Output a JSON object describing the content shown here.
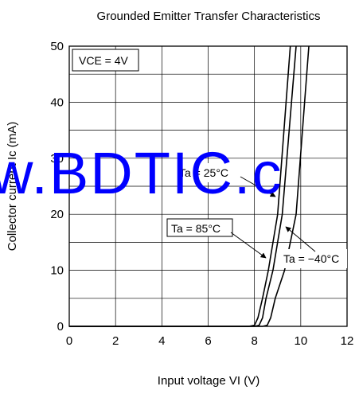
{
  "chart_data": {
    "type": "line",
    "title": "Grounded Emitter Transfer Characteristics",
    "xlabel": "Input voltage  VI (V)",
    "ylabel": "Collector current  Ic (mA)",
    "xlim": [
      0,
      12
    ],
    "ylim": [
      0,
      50
    ],
    "x_ticks": [
      "0",
      "2",
      "4",
      "6",
      "8",
      "10",
      "12"
    ],
    "y_ticks": [
      "0",
      "10",
      "20",
      "30",
      "40",
      "50"
    ],
    "grid": true,
    "condition": "VCE = 4V",
    "series": [
      {
        "name": "Ta = 85°C",
        "x": [
          0,
          7.75,
          8.0,
          8.15,
          8.35,
          8.6,
          9.0,
          9.55
        ],
        "y": [
          0,
          0,
          0.2,
          1.5,
          5,
          10,
          20,
          50
        ]
      },
      {
        "name": "Ta = 25°C",
        "x": [
          0,
          8.0,
          8.2,
          8.35,
          8.5,
          8.8,
          9.2,
          9.8
        ],
        "y": [
          0,
          0,
          0.2,
          1.5,
          5,
          10,
          20,
          50
        ]
      },
      {
        "name": "Ta = −40°C",
        "x": [
          0,
          8.35,
          8.55,
          8.7,
          8.9,
          9.3,
          9.8,
          10.35
        ],
        "y": [
          0,
          0,
          0.2,
          1.5,
          5,
          10,
          20,
          50
        ]
      }
    ],
    "annotations": [
      {
        "text": "Ta = 25°C",
        "series": 1
      },
      {
        "text": "Ta = 85°C",
        "series": 0
      },
      {
        "text": "Ta = −40°C",
        "series": 2
      }
    ]
  },
  "watermark": "w.BDTIC.c",
  "colors": {
    "line": "#000000",
    "watermark": "#0000ff"
  }
}
